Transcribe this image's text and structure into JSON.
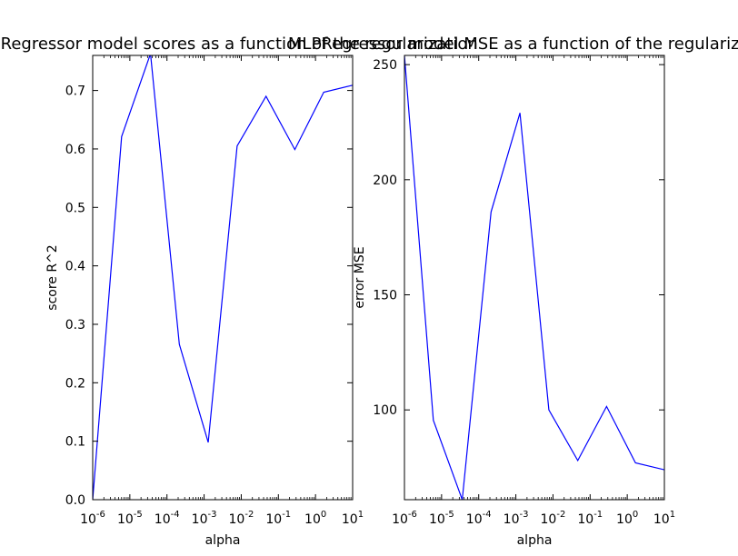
{
  "chart_data": [
    {
      "type": "line",
      "title": "MLPRegressor model scores as a function of the regularization",
      "xlabel": "alpha",
      "ylabel": "score R^2",
      "xscale": "log",
      "xlim": [
        1e-06,
        10
      ],
      "ylim": [
        0.0,
        0.76
      ],
      "grid": false,
      "x_ticks": [
        "-6",
        "-5",
        "-4",
        "-3",
        "-2",
        "-1",
        "0",
        "1"
      ],
      "y_ticks": [
        "0.0",
        "0.1",
        "0.2",
        "0.3",
        "0.4",
        "0.5",
        "0.6",
        "0.7"
      ],
      "line_color": "#0000ff",
      "series": [
        {
          "x": [
            1e-06,
            5.995e-06,
            3.594e-05,
            0.0002154,
            0.001292,
            0.007743,
            0.04642,
            0.2783,
            1.668,
            10
          ],
          "y": [
            0.0,
            0.621,
            0.763,
            0.266,
            0.098,
            0.605,
            0.69,
            0.599,
            0.697,
            0.709
          ]
        }
      ]
    },
    {
      "type": "line",
      "title": "MLPRegressor model MSE as a function of the regularization",
      "xlabel": "alpha",
      "ylabel": "error MSE",
      "xscale": "log",
      "xlim": [
        1e-06,
        10
      ],
      "ylim": [
        61,
        254
      ],
      "grid": false,
      "x_ticks": [
        "-6",
        "-5",
        "-4",
        "-3",
        "-2",
        "-1",
        "0",
        "1"
      ],
      "y_ticks": [
        "100",
        "150",
        "200",
        "250"
      ],
      "line_color": "#0000ff",
      "series": [
        {
          "x": [
            1e-06,
            5.995e-06,
            3.594e-05,
            0.0002154,
            0.001292,
            0.007743,
            0.04642,
            0.2783,
            1.668,
            10
          ],
          "y": [
            254,
            95.5,
            61,
            186,
            229,
            100,
            78,
            101.5,
            77,
            74
          ]
        }
      ]
    }
  ]
}
